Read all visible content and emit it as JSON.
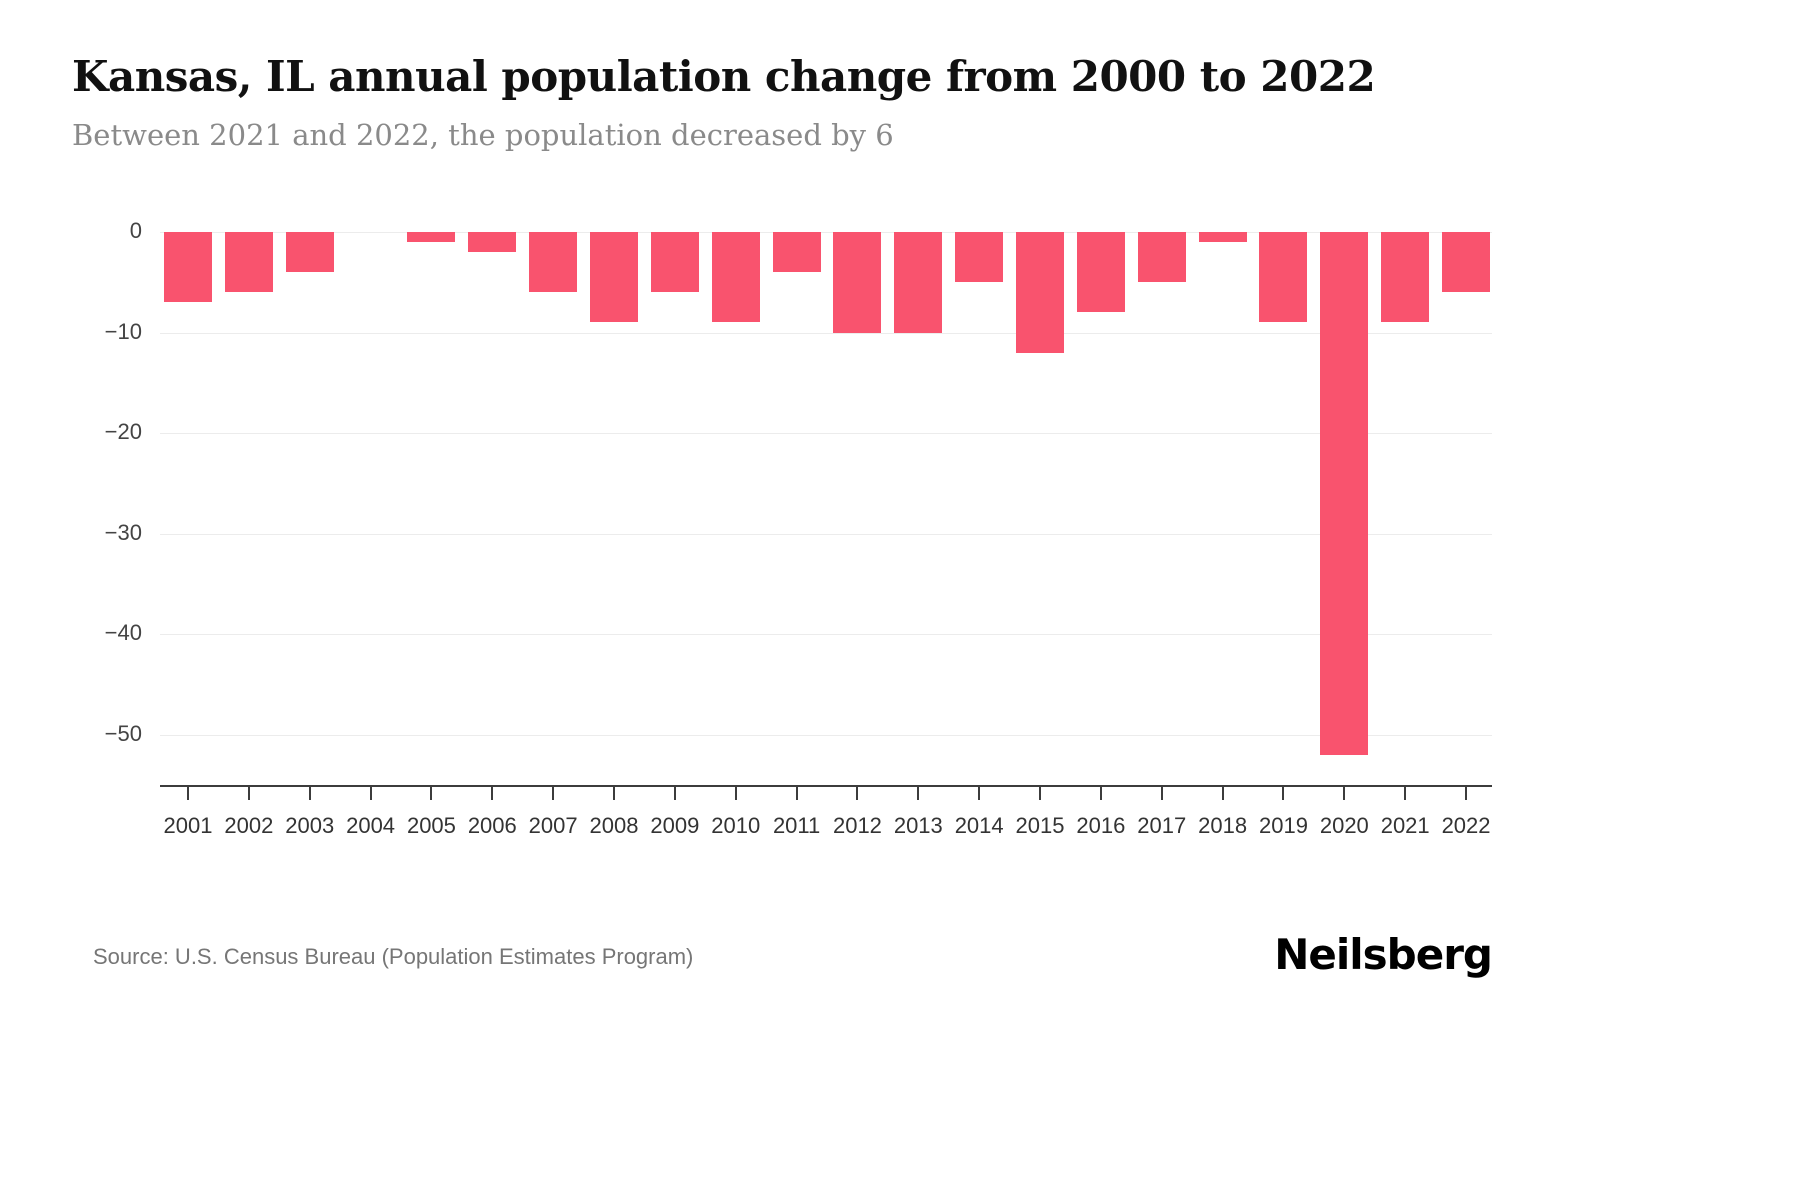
{
  "header": {
    "title": "Kansas, IL annual population change from 2000 to 2022",
    "subtitle": "Between 2021 and 2022, the population decreased by 6"
  },
  "footer": {
    "source": "Source: U.S. Census Bureau (Population Estimates Program)",
    "logo": "Neilsberg"
  },
  "chart_data": {
    "type": "bar",
    "title": "Kansas, IL annual population change from 2000 to 2022",
    "subtitle": "Between 2021 and 2022, the population decreased by 6",
    "categories": [
      "2001",
      "2002",
      "2003",
      "2004",
      "2005",
      "2006",
      "2007",
      "2008",
      "2009",
      "2010",
      "2011",
      "2012",
      "2013",
      "2014",
      "2015",
      "2016",
      "2017",
      "2018",
      "2019",
      "2020",
      "2021",
      "2022"
    ],
    "values": [
      -7,
      -6,
      -4,
      0,
      -1,
      -2,
      -6,
      -9,
      -6,
      -9,
      -4,
      -10,
      -10,
      -5,
      -12,
      -8,
      -5,
      -1,
      -9,
      -52,
      -9,
      -6
    ],
    "xlabel": "",
    "ylabel": "",
    "ylim": [
      -55,
      0
    ],
    "yticks": [
      0,
      -10,
      -20,
      -30,
      -40,
      -50
    ],
    "bar_color": "#f9536e",
    "grid": true,
    "legend": false
  }
}
